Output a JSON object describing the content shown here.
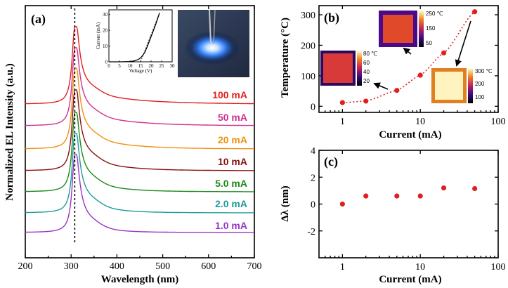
{
  "chart_data": [
    {
      "panel": "(a)",
      "type": "line",
      "xlabel": "Wavelength (nm)",
      "ylabel": "Normalized EL Intensity (a.u.)",
      "xlim": [
        200,
        700
      ],
      "xticks": [
        "200",
        "300",
        "400",
        "500",
        "600",
        "700"
      ],
      "peak_nm": 308,
      "series": [
        {
          "name": "1.0 mA",
          "color": "#9a33c4"
        },
        {
          "name": "2.0 mA",
          "color": "#1f9b9b"
        },
        {
          "name": "5.0 mA",
          "color": "#1a8a1a"
        },
        {
          "name": "10 mA",
          "color": "#8a1010"
        },
        {
          "name": "20 mA",
          "color": "#f09010"
        },
        {
          "name": "50 mA",
          "color": "#d03090"
        },
        {
          "name": "100 mA",
          "color": "#e02020"
        }
      ],
      "inset": {
        "type": "line",
        "xlabel": "Voltage (V)",
        "ylabel": "Current (mA)",
        "xlim": [
          0,
          30
        ],
        "ylim": [
          0,
          33
        ],
        "xticks": [
          "0",
          "5",
          "10",
          "15",
          "20",
          "25",
          "30"
        ],
        "yticks": [
          "0",
          "10",
          "20",
          "30"
        ],
        "x": [
          0,
          5,
          10,
          12,
          14,
          15,
          16,
          17,
          18,
          19,
          20,
          21,
          22,
          23,
          24
        ],
        "y": [
          0,
          0,
          0.2,
          0.6,
          1.5,
          2.5,
          4,
          6,
          9,
          12.5,
          16,
          19.5,
          23,
          27,
          31
        ]
      }
    },
    {
      "panel": "(b)",
      "type": "scatter",
      "xlabel": "Current (mA)",
      "ylabel": "Temperature (°C)",
      "xscale": "log",
      "xlim": [
        0.5,
        100
      ],
      "ylim": [
        -20,
        330
      ],
      "xticks": [
        "1",
        "10",
        "100"
      ],
      "yticks": [
        "0",
        "100",
        "200",
        "300"
      ],
      "x": [
        1,
        2,
        5,
        10,
        20,
        50
      ],
      "y": [
        12,
        17,
        52,
        102,
        175,
        310
      ],
      "color": "#e02020",
      "thermal_maps": [
        {
          "ticks": [
            "80 ℃",
            "60",
            "40",
            "20"
          ]
        },
        {
          "ticks": [
            "250 ℃",
            "150",
            "50"
          ]
        },
        {
          "ticks": [
            "300 ℃",
            "200",
            "100"
          ]
        }
      ]
    },
    {
      "panel": "(c)",
      "type": "scatter",
      "xlabel": "Current (mA)",
      "ylabel": "Δλ (nm)",
      "xscale": "log",
      "xlim": [
        0.5,
        100
      ],
      "ylim": [
        -4,
        4
      ],
      "xticks": [
        "1",
        "10",
        "100"
      ],
      "yticks": [
        "4",
        "2",
        "0",
        "-2"
      ],
      "x": [
        1,
        2,
        5,
        10,
        20,
        50
      ],
      "y": [
        0,
        0.6,
        0.6,
        0.6,
        1.2,
        1.15
      ],
      "color": "#e02020"
    }
  ]
}
